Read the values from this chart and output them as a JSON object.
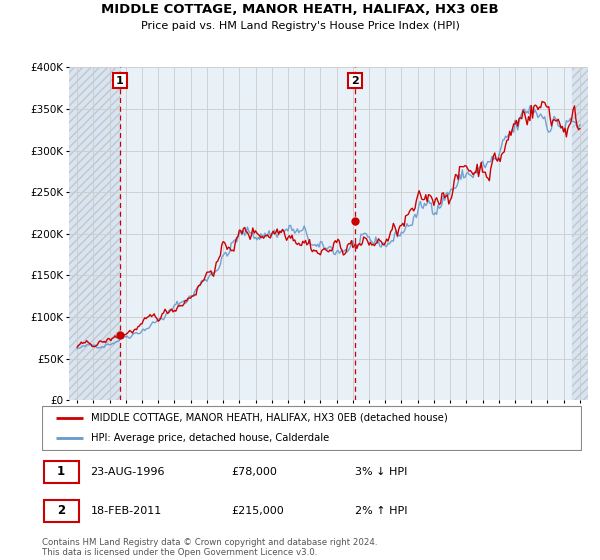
{
  "title": "MIDDLE COTTAGE, MANOR HEATH, HALIFAX, HX3 0EB",
  "subtitle": "Price paid vs. HM Land Registry's House Price Index (HPI)",
  "legend_line1": "MIDDLE COTTAGE, MANOR HEATH, HALIFAX, HX3 0EB (detached house)",
  "legend_line2": "HPI: Average price, detached house, Calderdale",
  "footnote": "Contains HM Land Registry data © Crown copyright and database right 2024.\nThis data is licensed under the Open Government Licence v3.0.",
  "annotation1_label": "1",
  "annotation1_date": "23-AUG-1996",
  "annotation1_price": "£78,000",
  "annotation1_hpi": "3% ↓ HPI",
  "annotation2_label": "2",
  "annotation2_date": "18-FEB-2011",
  "annotation2_price": "£215,000",
  "annotation2_hpi": "2% ↑ HPI",
  "sale1_x": 1996.646,
  "sale1_y": 78000,
  "sale2_x": 2011.13,
  "sale2_y": 215000,
  "property_color": "#cc0000",
  "hpi_color": "#6699cc",
  "background_plot": "#e8f0f8",
  "ylim": [
    0,
    400000
  ],
  "xlim_left": 1993.5,
  "xlim_right": 2025.5
}
